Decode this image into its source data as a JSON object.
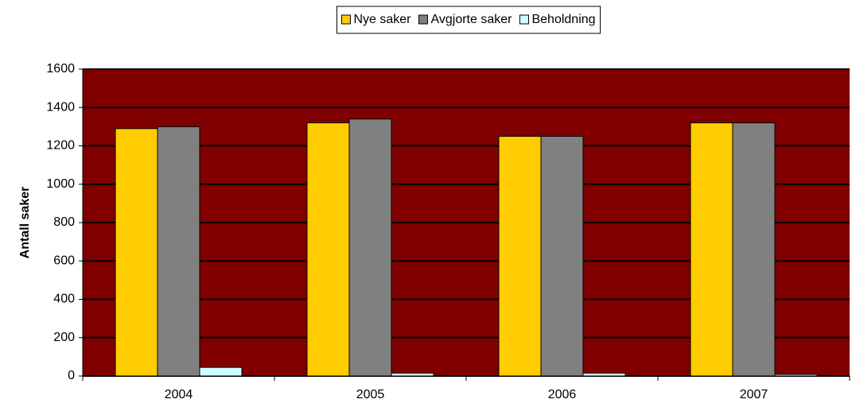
{
  "chart_data": {
    "type": "bar",
    "ylabel": "Antall saker",
    "categories": [
      "2004",
      "2005",
      "2006",
      "2007"
    ],
    "series": [
      {
        "name": "Nye saker",
        "color": "#ffcc00",
        "values": [
          1290,
          1320,
          1250,
          1320
        ]
      },
      {
        "name": "Avgjorte saker",
        "color": "#808080",
        "values": [
          1300,
          1340,
          1250,
          1320
        ]
      },
      {
        "name": "Beholdning",
        "color": "#ccffff",
        "values": [
          45,
          15,
          15,
          8
        ]
      }
    ],
    "ylim": [
      0,
      1600
    ],
    "yticks": [
      0,
      200,
      400,
      600,
      800,
      1000,
      1200,
      1400,
      1600
    ],
    "grid": true,
    "plot_background": "#800000",
    "legend": "top"
  }
}
